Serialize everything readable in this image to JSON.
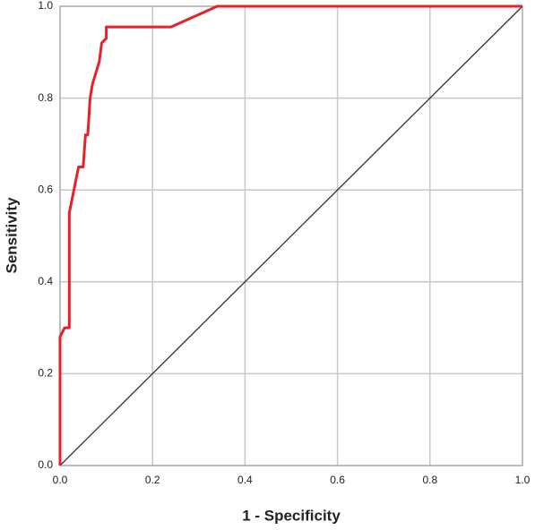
{
  "chart_data": {
    "type": "line",
    "xlabel": "1 - Specificity",
    "ylabel": "Sensitivity",
    "series": [
      {
        "color": "#e8202a",
        "x": [
          0,
          0,
          0.01,
          0.02,
          0.02,
          0.03,
          0.04,
          0.05,
          0.055,
          0.06,
          0.065,
          0.07,
          0.085,
          0.09,
          0.1,
          0.1,
          0.24,
          0.34,
          1
        ],
        "values": [
          0,
          0.28,
          0.3,
          0.3,
          0.55,
          0.6,
          0.65,
          0.65,
          0.72,
          0.72,
          0.8,
          0.83,
          0.88,
          0.92,
          0.93,
          0.955,
          0.955,
          1,
          1
        ]
      },
      {
        "color": "#333333",
        "x": [
          0,
          1
        ],
        "values": [
          0,
          1
        ]
      }
    ],
    "xlim": [
      0,
      1
    ],
    "ylim": [
      0,
      1
    ],
    "xticks": [
      {
        "value": 0,
        "label": "0.0"
      },
      0.2,
      0.4,
      0.6,
      0.8,
      {
        "value": 1,
        "label": "1.0"
      }
    ],
    "yticks": [
      {
        "value": 0,
        "label": "0.0"
      },
      0.2,
      0.4,
      0.6,
      0.8,
      {
        "value": 1,
        "label": "1.0"
      }
    ],
    "grid": true
  }
}
